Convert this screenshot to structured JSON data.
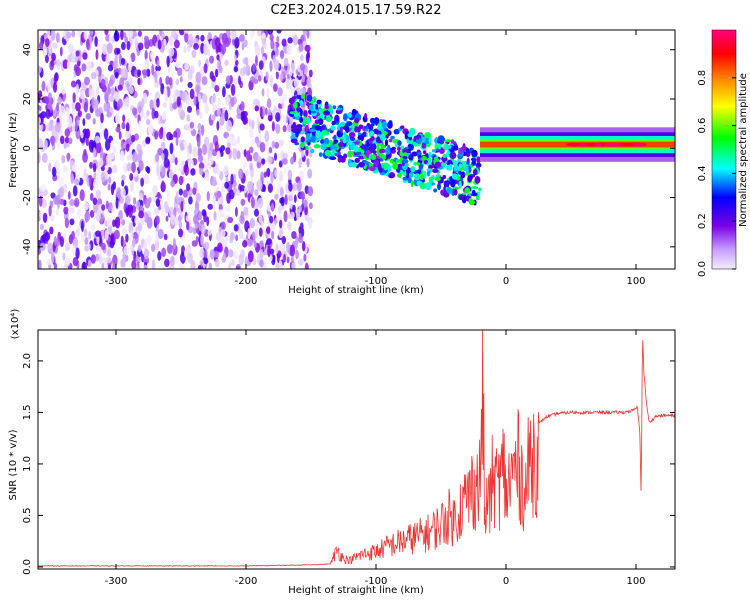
{
  "title": "C2E3.2024.015.17.59.R22",
  "chart_data": [
    {
      "type": "heatmap",
      "name": "spectrogram",
      "title": "C2E3.2024.015.17.59.R22",
      "xlabel": "Height of straight line (km)",
      "ylabel": "Frequency (Hz)",
      "xlim": [
        -360,
        130
      ],
      "ylim": [
        -49,
        48
      ],
      "xticks": [
        -300,
        -200,
        -100,
        0,
        100
      ],
      "yticks": [
        -40,
        -20,
        0,
        20,
        40
      ],
      "grid": false,
      "colorbar": {
        "label": "Normalized spectral amplitude",
        "range": [
          0,
          1
        ],
        "ticks": [
          0.0,
          0.2,
          0.4,
          0.6,
          0.8
        ],
        "colormap": [
          "#f4ecff",
          "#7b00e6",
          "#0000ff",
          "#00ffff",
          "#00ff00",
          "#ffff00",
          "#ff8000",
          "#ff0000",
          "#ff0080"
        ]
      },
      "regions": [
        {
          "label": "noise",
          "x": [
            -360,
            -150
          ],
          "freq": [
            -49,
            48
          ],
          "amplitude": [
            0.0,
            0.25
          ]
        },
        {
          "label": "transition",
          "x": [
            -165,
            -20
          ],
          "center_freq": [
            12,
            -12
          ],
          "amplitude": [
            0.15,
            0.55
          ]
        },
        {
          "label": "signal",
          "x": [
            -20,
            130
          ],
          "center_freq": 1.5,
          "amplitude": [
            0.7,
            1.0
          ]
        }
      ]
    },
    {
      "type": "line",
      "name": "snr",
      "xlabel": "Height of straight line (km)",
      "ylabel": "SNR (10 * v/v)",
      "y_scale_label": "(x10⁴)",
      "xlim": [
        -360,
        130
      ],
      "ylim": [
        -0.02,
        2.3
      ],
      "xticks": [
        -300,
        -200,
        -100,
        0,
        100
      ],
      "yticks": [
        0.0,
        0.5,
        1.0,
        1.5,
        2.0
      ],
      "color": "#ee3333",
      "series": [
        {
          "name": "SNR",
          "x": [
            -360,
            -300,
            -250,
            -200,
            -150,
            -135,
            -130,
            -125,
            -120,
            -110,
            -100,
            -90,
            -80,
            -70,
            -60,
            -50,
            -45,
            -40,
            -35,
            -30,
            -25,
            -20,
            -18,
            -16,
            -14,
            -12,
            -10,
            -8,
            -6,
            -4,
            -2,
            0,
            5,
            10,
            15,
            18,
            20,
            25,
            30,
            40,
            50,
            60,
            70,
            80,
            90,
            98,
            101,
            103,
            104,
            105,
            106,
            108,
            110,
            115,
            120,
            130
          ],
          "y": [
            0.01,
            0.01,
            0.01,
            0.01,
            0.02,
            0.03,
            0.2,
            0.1,
            0.08,
            0.15,
            0.18,
            0.25,
            0.3,
            0.35,
            0.4,
            0.5,
            0.6,
            0.55,
            0.7,
            0.8,
            0.95,
            1.0,
            2.08,
            0.4,
            0.9,
            0.75,
            1.1,
            0.9,
            1.05,
            0.95,
            1.2,
            0.85,
            1.1,
            1.2,
            0.85,
            1.25,
            1.3,
            1.38,
            1.45,
            1.49,
            1.5,
            1.5,
            1.5,
            1.5,
            1.5,
            1.52,
            1.55,
            1.3,
            0.65,
            2.3,
            1.9,
            1.6,
            1.4,
            1.46,
            1.47,
            1.47
          ]
        }
      ]
    }
  ]
}
